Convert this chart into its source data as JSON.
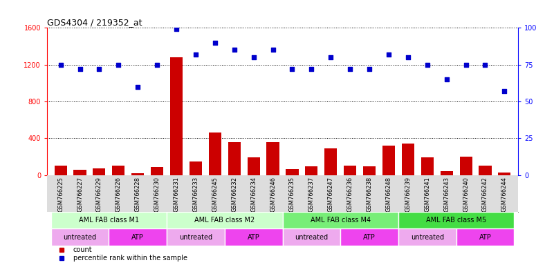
{
  "title": "GDS4304 / 219352_at",
  "samples": [
    "GSM766225",
    "GSM766227",
    "GSM766229",
    "GSM766226",
    "GSM766228",
    "GSM766230",
    "GSM766231",
    "GSM766233",
    "GSM766245",
    "GSM766232",
    "GSM766234",
    "GSM766246",
    "GSM766235",
    "GSM766237",
    "GSM766247",
    "GSM766236",
    "GSM766238",
    "GSM766248",
    "GSM766239",
    "GSM766241",
    "GSM766243",
    "GSM766240",
    "GSM766242",
    "GSM766244"
  ],
  "counts": [
    100,
    60,
    70,
    100,
    20,
    85,
    1280,
    145,
    460,
    360,
    195,
    355,
    65,
    95,
    290,
    105,
    95,
    320,
    340,
    195,
    45,
    200,
    105,
    30
  ],
  "percentiles": [
    75,
    72,
    72,
    75,
    60,
    75,
    99,
    82,
    90,
    85,
    80,
    85,
    72,
    72,
    80,
    72,
    72,
    82,
    80,
    75,
    65,
    75,
    75,
    57
  ],
  "disease_state_groups": [
    {
      "label": "AML FAB class M1",
      "start": 0,
      "end": 6,
      "color": "#ccffcc"
    },
    {
      "label": "AML FAB class M2",
      "start": 6,
      "end": 12,
      "color": "#ccffcc"
    },
    {
      "label": "AML FAB class M4",
      "start": 12,
      "end": 18,
      "color": "#77ee77"
    },
    {
      "label": "AML FAB class M5",
      "start": 18,
      "end": 24,
      "color": "#44dd44"
    }
  ],
  "agent_groups": [
    {
      "label": "untreated",
      "start": 0,
      "end": 3,
      "color": "#eeaaee"
    },
    {
      "label": "ATP",
      "start": 3,
      "end": 6,
      "color": "#ee44ee"
    },
    {
      "label": "untreated",
      "start": 6,
      "end": 9,
      "color": "#eeaaee"
    },
    {
      "label": "ATP",
      "start": 9,
      "end": 12,
      "color": "#ee44ee"
    },
    {
      "label": "untreated",
      "start": 12,
      "end": 15,
      "color": "#eeaaee"
    },
    {
      "label": "ATP",
      "start": 15,
      "end": 18,
      "color": "#ee44ee"
    },
    {
      "label": "untreated",
      "start": 18,
      "end": 21,
      "color": "#eeaaee"
    },
    {
      "label": "ATP",
      "start": 21,
      "end": 24,
      "color": "#ee44ee"
    }
  ],
  "bar_color": "#cc0000",
  "scatter_color": "#0000cc",
  "ylim_left": [
    0,
    1600
  ],
  "ylim_right": [
    0,
    100
  ],
  "yticks_left": [
    0,
    400,
    800,
    1200,
    1600
  ],
  "yticks_right": [
    0,
    25,
    50,
    75,
    100
  ],
  "bar_width": 0.65,
  "tick_label_bg": "#dddddd",
  "plot_bg": "#f5f5f5"
}
